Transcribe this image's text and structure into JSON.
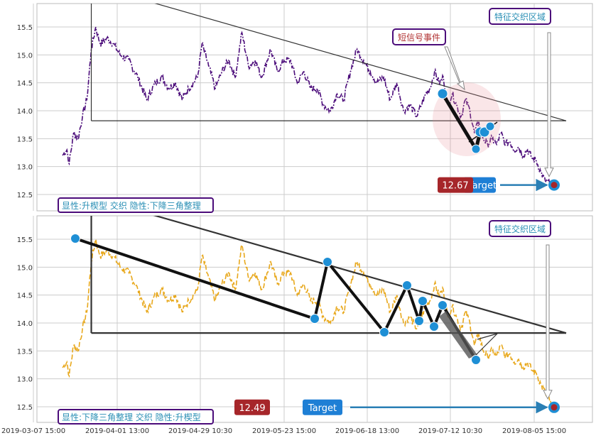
{
  "chart_data": [
    {
      "type": "line",
      "panel": "top",
      "x_ticks": [
        "2019-03-07 15:00",
        "2019-04-01 13:00",
        "2019-04-29 10:30",
        "2019-05-23 15:00",
        "2019-06-18 13:00",
        "2019-07-12 10:30",
        "2019-08-05 15:00"
      ],
      "y_ticks": [
        12.5,
        13.0,
        13.5,
        14.0,
        14.5,
        15.0,
        15.5
      ],
      "ylim": [
        12.2,
        15.9
      ],
      "grid": true,
      "series": [
        {
          "color": "#4b0c7a",
          "style": "dash-dot",
          "anchors": [
            [
              0,
              13.2
            ],
            [
              2,
              13.3
            ],
            [
              3,
              13.05
            ],
            [
              5,
              13.6
            ],
            [
              7,
              13.5
            ],
            [
              9,
              13.9
            ],
            [
              11,
              14.2
            ],
            [
              13,
              15.1
            ],
            [
              15,
              15.5
            ],
            [
              17,
              15.2
            ],
            [
              20,
              15.3
            ],
            [
              23,
              15.2
            ],
            [
              26,
              15.0
            ],
            [
              30,
              14.9
            ],
            [
              34,
              14.6
            ],
            [
              38,
              14.2
            ],
            [
              42,
              14.5
            ],
            [
              45,
              14.6
            ],
            [
              48,
              14.4
            ],
            [
              51,
              14.5
            ],
            [
              54,
              14.2
            ],
            [
              57,
              14.4
            ],
            [
              61,
              14.6
            ],
            [
              63,
              15.2
            ],
            [
              66,
              14.8
            ],
            [
              69,
              14.4
            ],
            [
              72,
              14.7
            ],
            [
              75,
              14.9
            ],
            [
              78,
              14.6
            ],
            [
              81,
              15.4
            ],
            [
              84,
              14.8
            ],
            [
              87,
              14.9
            ],
            [
              90,
              14.6
            ],
            [
              94,
              15.1
            ],
            [
              97,
              14.7
            ],
            [
              100,
              14.9
            ],
            [
              103,
              14.9
            ],
            [
              106,
              14.5
            ],
            [
              109,
              14.7
            ],
            [
              112,
              14.4
            ],
            [
              115,
              14.4
            ],
            [
              118,
              14.1
            ],
            [
              121,
              14.0
            ],
            [
              124,
              14.3
            ],
            [
              127,
              14.2
            ],
            [
              130,
              14.7
            ],
            [
              133,
              15.1
            ],
            [
              136,
              14.9
            ],
            [
              139,
              14.7
            ],
            [
              142,
              14.5
            ],
            [
              145,
              14.6
            ],
            [
              148,
              14.2
            ],
            [
              151,
              14.5
            ],
            [
              154,
              14.0
            ],
            [
              157,
              14.1
            ],
            [
              160,
              13.9
            ],
            [
              162,
              14.1
            ],
            [
              164,
              14.3
            ],
            [
              166,
              14.4
            ],
            [
              168,
              14.7
            ],
            [
              170,
              14.5
            ],
            [
              172,
              14.6
            ],
            [
              174,
              14.1
            ],
            [
              176,
              14.3
            ],
            [
              178,
              14.1
            ],
            [
              180,
              13.9
            ],
            [
              182,
              14.2
            ],
            [
              184,
              14.0
            ],
            [
              186,
              13.6
            ],
            [
              188,
              13.8
            ],
            [
              190,
              13.5
            ],
            [
              192,
              13.4
            ],
            [
              194,
              13.5
            ],
            [
              196,
              13.4
            ],
            [
              198,
              13.6
            ],
            [
              200,
              13.4
            ],
            [
              202,
              13.45
            ],
            [
              204,
              13.3
            ],
            [
              206,
              13.35
            ],
            [
              208,
              13.2
            ],
            [
              210,
              13.3
            ],
            [
              212,
              13.15
            ],
            [
              214,
              13.1
            ],
            [
              216,
              12.9
            ],
            [
              218,
              12.75
            ],
            [
              220,
              12.7
            ],
            [
              222,
              12.67
            ]
          ]
        }
      ],
      "annotations": {
        "box_tr": "特征交织区域",
        "signal_label": "短信号事件",
        "pattern_label": "显性:升楔型 交织 隐性:下降三角整理",
        "value_badge": "12.67",
        "target_label": "Target"
      }
    },
    {
      "type": "line",
      "panel": "bottom",
      "x_ticks": [
        "2019-03-07 15:00",
        "2019-04-01 13:00",
        "2019-04-29 10:30",
        "2019-05-23 15:00",
        "2019-06-18 13:00",
        "2019-07-12 10:30",
        "2019-08-05 15:00"
      ],
      "y_ticks": [
        12.5,
        13.0,
        13.5,
        14.0,
        14.5,
        15.0,
        15.5
      ],
      "ylim": [
        12.2,
        15.9
      ],
      "grid": true,
      "series": [
        {
          "color": "#e8a81c",
          "style": "dash",
          "anchors": [
            [
              0,
              13.2
            ],
            [
              2,
              13.3
            ],
            [
              3,
              13.05
            ],
            [
              5,
              13.6
            ],
            [
              7,
              13.5
            ],
            [
              9,
              13.9
            ],
            [
              11,
              14.2
            ],
            [
              13,
              15.1
            ],
            [
              15,
              15.5
            ],
            [
              17,
              15.2
            ],
            [
              20,
              15.3
            ],
            [
              23,
              15.2
            ],
            [
              26,
              15.0
            ],
            [
              30,
              14.9
            ],
            [
              34,
              14.6
            ],
            [
              38,
              14.2
            ],
            [
              42,
              14.5
            ],
            [
              45,
              14.6
            ],
            [
              48,
              14.4
            ],
            [
              51,
              14.5
            ],
            [
              54,
              14.2
            ],
            [
              57,
              14.4
            ],
            [
              61,
              14.6
            ],
            [
              63,
              15.2
            ],
            [
              66,
              14.8
            ],
            [
              69,
              14.4
            ],
            [
              72,
              14.7
            ],
            [
              75,
              14.9
            ],
            [
              78,
              14.6
            ],
            [
              81,
              15.4
            ],
            [
              84,
              14.8
            ],
            [
              87,
              14.9
            ],
            [
              90,
              14.6
            ],
            [
              94,
              15.1
            ],
            [
              97,
              14.7
            ],
            [
              100,
              14.9
            ],
            [
              103,
              14.9
            ],
            [
              106,
              14.5
            ],
            [
              109,
              14.7
            ],
            [
              112,
              14.4
            ],
            [
              115,
              14.4
            ],
            [
              118,
              14.1
            ],
            [
              121,
              14.0
            ],
            [
              124,
              14.3
            ],
            [
              127,
              14.2
            ],
            [
              130,
              14.7
            ],
            [
              133,
              15.1
            ],
            [
              136,
              14.9
            ],
            [
              139,
              14.7
            ],
            [
              142,
              14.5
            ],
            [
              145,
              14.6
            ],
            [
              148,
              14.2
            ],
            [
              151,
              14.5
            ],
            [
              154,
              14.0
            ],
            [
              157,
              14.1
            ],
            [
              160,
              13.9
            ],
            [
              162,
              14.1
            ],
            [
              164,
              14.3
            ],
            [
              166,
              14.4
            ],
            [
              168,
              14.7
            ],
            [
              170,
              14.5
            ],
            [
              172,
              14.6
            ],
            [
              174,
              14.1
            ],
            [
              176,
              14.3
            ],
            [
              178,
              14.1
            ],
            [
              180,
              13.9
            ],
            [
              182,
              14.2
            ],
            [
              184,
              14.0
            ],
            [
              186,
              13.6
            ],
            [
              188,
              13.8
            ],
            [
              190,
              13.5
            ],
            [
              192,
              13.4
            ],
            [
              194,
              13.5
            ],
            [
              196,
              13.4
            ],
            [
              198,
              13.6
            ],
            [
              200,
              13.4
            ],
            [
              202,
              13.45
            ],
            [
              204,
              13.3
            ],
            [
              206,
              13.35
            ],
            [
              208,
              13.2
            ],
            [
              210,
              13.3
            ],
            [
              212,
              13.15
            ],
            [
              214,
              13.1
            ],
            [
              216,
              12.9
            ],
            [
              218,
              12.75
            ],
            [
              220,
              12.6
            ],
            [
              222,
              12.49
            ]
          ]
        }
      ],
      "annotations": {
        "box_tr": "特征交织区域",
        "pattern_label": "显性:下降三角整理 交织 隐性:升楔型",
        "value_badge": "12.49",
        "target_label": "Target"
      }
    }
  ],
  "colors": {
    "grid": "#cccccc",
    "frame": "#bbbbbb",
    "box_border": "#4b0c7a",
    "box_text": "#2a8fb5",
    "dot": "#1e8fd5",
    "badge_red": "#a6262a",
    "target_blue": "#1e7fd5",
    "arrow_blue": "#2a7fb5",
    "signal_text": "#b03030",
    "trend": "#333333"
  }
}
